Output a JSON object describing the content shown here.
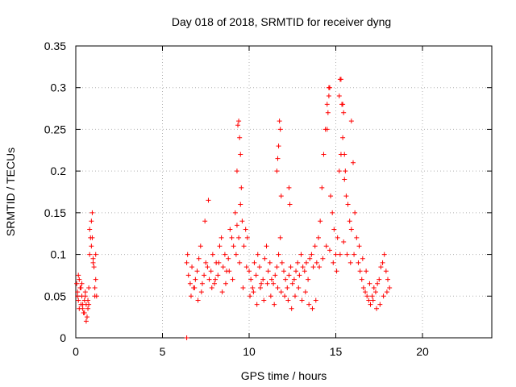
{
  "chart_data": {
    "type": "scatter",
    "title": "Day 018 of 2018, SRMTID for receiver dyng",
    "xlabel": "GPS time / hours",
    "ylabel": "SRMTID / TECUs",
    "xlim": [
      0,
      24
    ],
    "ylim": [
      0,
      0.35
    ],
    "grid": true,
    "marker": "+",
    "x_ticks": [
      0,
      5,
      10,
      15,
      20
    ],
    "x_tick_labels": [
      "0",
      "5",
      "10",
      "15",
      "20"
    ],
    "y_ticks": [
      0,
      0.05,
      0.1,
      0.15,
      0.2,
      0.25,
      0.3,
      0.35
    ],
    "y_tick_labels": [
      "0",
      "0.05",
      "0.1",
      "0.15",
      "0.2",
      "0.25",
      "0.3",
      "0.35"
    ],
    "series": [
      {
        "name": "SRMTID",
        "color": "#ff0000",
        "x": [
          0.05,
          0.1,
          0.15,
          0.2,
          0.25,
          0.3,
          0.35,
          0.4,
          0.45,
          0.5,
          0.55,
          0.6,
          0.65,
          0.7,
          0.75,
          0.8,
          0.85,
          0.9,
          0.95,
          1.0,
          1.05,
          1.1,
          1.15,
          1.2,
          0.1,
          0.2,
          0.3,
          0.4,
          0.5,
          0.6,
          0.7,
          0.8,
          0.9,
          1.0,
          1.1,
          0.15,
          0.35,
          0.55,
          0.75,
          0.95,
          1.15,
          6.4,
          6.5,
          6.6,
          6.7,
          6.8,
          6.9,
          7.0,
          7.1,
          7.2,
          7.3,
          7.4,
          7.5,
          7.6,
          7.7,
          7.8,
          7.9,
          8.0,
          8.1,
          8.2,
          8.3,
          8.4,
          8.5,
          8.6,
          8.7,
          8.8,
          8.9,
          9.0,
          9.1,
          9.2,
          9.3,
          9.4,
          9.5,
          9.6,
          9.7,
          9.8,
          9.9,
          6.45,
          6.65,
          6.85,
          7.05,
          7.25,
          7.45,
          7.65,
          7.85,
          8.05,
          8.25,
          8.45,
          8.65,
          8.85,
          9.05,
          9.25,
          9.45,
          9.65,
          9.85,
          9.3,
          9.35,
          9.4,
          9.45,
          9.5,
          9.55,
          10.0,
          10.1,
          10.2,
          10.3,
          10.4,
          10.5,
          10.6,
          10.7,
          10.8,
          10.9,
          11.0,
          11.1,
          11.2,
          11.3,
          11.4,
          11.5,
          11.6,
          11.7,
          11.8,
          11.9,
          12.0,
          12.1,
          12.2,
          12.3,
          12.4,
          12.5,
          12.6,
          12.7,
          12.8,
          12.9,
          13.0,
          13.1,
          13.2,
          13.3,
          13.4,
          13.5,
          13.6,
          13.7,
          13.8,
          13.9,
          10.05,
          10.25,
          10.45,
          10.65,
          10.85,
          11.05,
          11.25,
          11.45,
          11.65,
          11.85,
          12.05,
          12.25,
          12.45,
          12.65,
          12.85,
          13.05,
          13.25,
          13.45,
          13.65,
          13.85,
          11.6,
          11.65,
          11.7,
          11.75,
          11.8,
          11.85,
          12.3,
          12.35,
          14.0,
          14.1,
          14.2,
          14.3,
          14.4,
          14.5,
          14.6,
          14.7,
          14.8,
          14.9,
          15.0,
          15.1,
          15.2,
          15.3,
          15.4,
          15.5,
          15.6,
          15.7,
          15.8,
          15.9,
          16.0,
          16.1,
          16.2,
          14.05,
          14.25,
          14.45,
          14.65,
          14.85,
          15.05,
          15.25,
          15.45,
          15.65,
          15.85,
          16.05,
          14.5,
          14.55,
          14.6,
          14.65,
          15.2,
          15.25,
          15.3,
          15.35,
          15.4,
          15.45,
          15.5,
          15.55,
          15.9,
          16.3,
          16.4,
          16.5,
          16.6,
          16.7,
          16.8,
          16.9,
          17.0,
          17.1,
          17.2,
          17.3,
          17.4,
          17.5,
          17.6,
          17.7,
          17.8,
          17.9,
          18.0,
          18.1,
          16.35,
          16.55,
          16.75,
          16.95,
          17.15,
          17.35,
          17.55,
          17.75,
          17.95,
          6.4
        ],
        "y": [
          0.065,
          0.055,
          0.045,
          0.07,
          0.06,
          0.04,
          0.05,
          0.035,
          0.03,
          0.045,
          0.055,
          0.04,
          0.025,
          0.035,
          0.06,
          0.1,
          0.12,
          0.14,
          0.15,
          0.095,
          0.085,
          0.06,
          0.07,
          0.05,
          0.05,
          0.035,
          0.06,
          0.04,
          0.03,
          0.02,
          0.045,
          0.13,
          0.11,
          0.09,
          0.05,
          0.075,
          0.065,
          0.05,
          0.04,
          0.12,
          0.1,
          0.09,
          0.075,
          0.065,
          0.085,
          0.06,
          0.07,
          0.08,
          0.095,
          0.11,
          0.065,
          0.075,
          0.09,
          0.085,
          0.07,
          0.08,
          0.1,
          0.065,
          0.09,
          0.075,
          0.11,
          0.12,
          0.085,
          0.1,
          0.08,
          0.095,
          0.13,
          0.12,
          0.11,
          0.15,
          0.135,
          0.12,
          0.16,
          0.14,
          0.11,
          0.13,
          0.12,
          0.1,
          0.05,
          0.06,
          0.045,
          0.055,
          0.14,
          0.165,
          0.06,
          0.07,
          0.09,
          0.055,
          0.065,
          0.08,
          0.07,
          0.1,
          0.09,
          0.06,
          0.085,
          0.2,
          0.255,
          0.26,
          0.24,
          0.22,
          0.18,
          0.08,
          0.07,
          0.06,
          0.09,
          0.075,
          0.1,
          0.085,
          0.065,
          0.07,
          0.095,
          0.11,
          0.08,
          0.09,
          0.07,
          0.065,
          0.075,
          0.085,
          0.1,
          0.12,
          0.09,
          0.08,
          0.07,
          0.06,
          0.075,
          0.085,
          0.065,
          0.07,
          0.08,
          0.09,
          0.075,
          0.1,
          0.085,
          0.08,
          0.09,
          0.07,
          0.095,
          0.1,
          0.085,
          0.11,
          0.09,
          0.05,
          0.055,
          0.04,
          0.06,
          0.045,
          0.065,
          0.05,
          0.04,
          0.06,
          0.055,
          0.05,
          0.045,
          0.035,
          0.05,
          0.06,
          0.045,
          0.055,
          0.04,
          0.035,
          0.045,
          0.2,
          0.215,
          0.23,
          0.26,
          0.25,
          0.17,
          0.18,
          0.16,
          0.12,
          0.14,
          0.18,
          0.22,
          0.25,
          0.28,
          0.3,
          0.17,
          0.15,
          0.13,
          0.1,
          0.12,
          0.2,
          0.22,
          0.24,
          0.19,
          0.17,
          0.16,
          0.14,
          0.26,
          0.21,
          0.15,
          0.12,
          0.085,
          0.095,
          0.11,
          0.105,
          0.09,
          0.08,
          0.1,
          0.115,
          0.1,
          0.09,
          0.1,
          0.25,
          0.27,
          0.29,
          0.3,
          0.29,
          0.31,
          0.31,
          0.28,
          0.28,
          0.27,
          0.22,
          0.2,
          0.13,
          0.09,
          0.08,
          0.07,
          0.06,
          0.055,
          0.05,
          0.045,
          0.04,
          0.05,
          0.06,
          0.055,
          0.065,
          0.07,
          0.085,
          0.09,
          0.1,
          0.08,
          0.07,
          0.06,
          0.11,
          0.095,
          0.08,
          0.065,
          0.045,
          0.035,
          0.04,
          0.05,
          0.055,
          0.0
        ]
      }
    ]
  }
}
